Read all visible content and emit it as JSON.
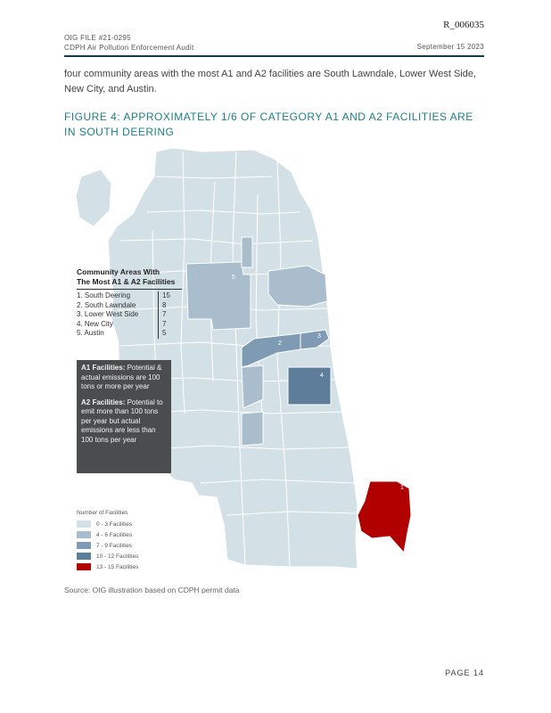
{
  "bates": "R_006035",
  "header": {
    "line1": "OIG FILE #21-0295",
    "line2": "CDPH Air Pollution Enforcement Audit",
    "date": "September 15 2023"
  },
  "body_text": "four community areas with the most A1 and A2 facilities are South Lawndale, Lower West Side, New City, and Austin.",
  "figure_title": "FIGURE 4: APPROXIMATELY 1/6 OF CATEGORY A1 AND A2 FACILITIES ARE IN SOUTH DEERING",
  "legend": {
    "title_line1": "Community Areas With",
    "title_line2": "The Most A1 & A2 Facilities",
    "rows": [
      {
        "name": "1. South Deering",
        "count": "15"
      },
      {
        "name": "2. South Lawndale",
        "count": "8"
      },
      {
        "name": "3. Lower West Side",
        "count": "7"
      },
      {
        "name": "4. New City",
        "count": "7"
      },
      {
        "name": "5. Austin",
        "count": "5"
      }
    ]
  },
  "info": {
    "a1_label": "A1 Facilities:",
    "a1_text": "Potential & actual emissions are 100 tons or more per year",
    "a2_label": "A2 Facilities:",
    "a2_text": "Potential to emit more than 100 tons per year but actual emissions are less than 100 tons per year"
  },
  "scale": {
    "title": "Number of Facilities",
    "items": [
      {
        "label": "0 - 3 Facilities",
        "color": "#d3e1e6"
      },
      {
        "label": "4 - 6 Facilities",
        "color": "#a9bdcc"
      },
      {
        "label": "7 - 9 Facilities",
        "color": "#7f9bb3"
      },
      {
        "label": "10 - 12 Facilities",
        "color": "#5d7d9a"
      },
      {
        "label": "13 - 15 Facilities",
        "color": "#b00000"
      }
    ]
  },
  "map_labels": {
    "a1": "1",
    "a2": "2",
    "a3": "3",
    "a4": "4",
    "a5": "5"
  },
  "source": "Source: OIG illustration based on CDPH permit data",
  "page_label": "PAGE 14"
}
